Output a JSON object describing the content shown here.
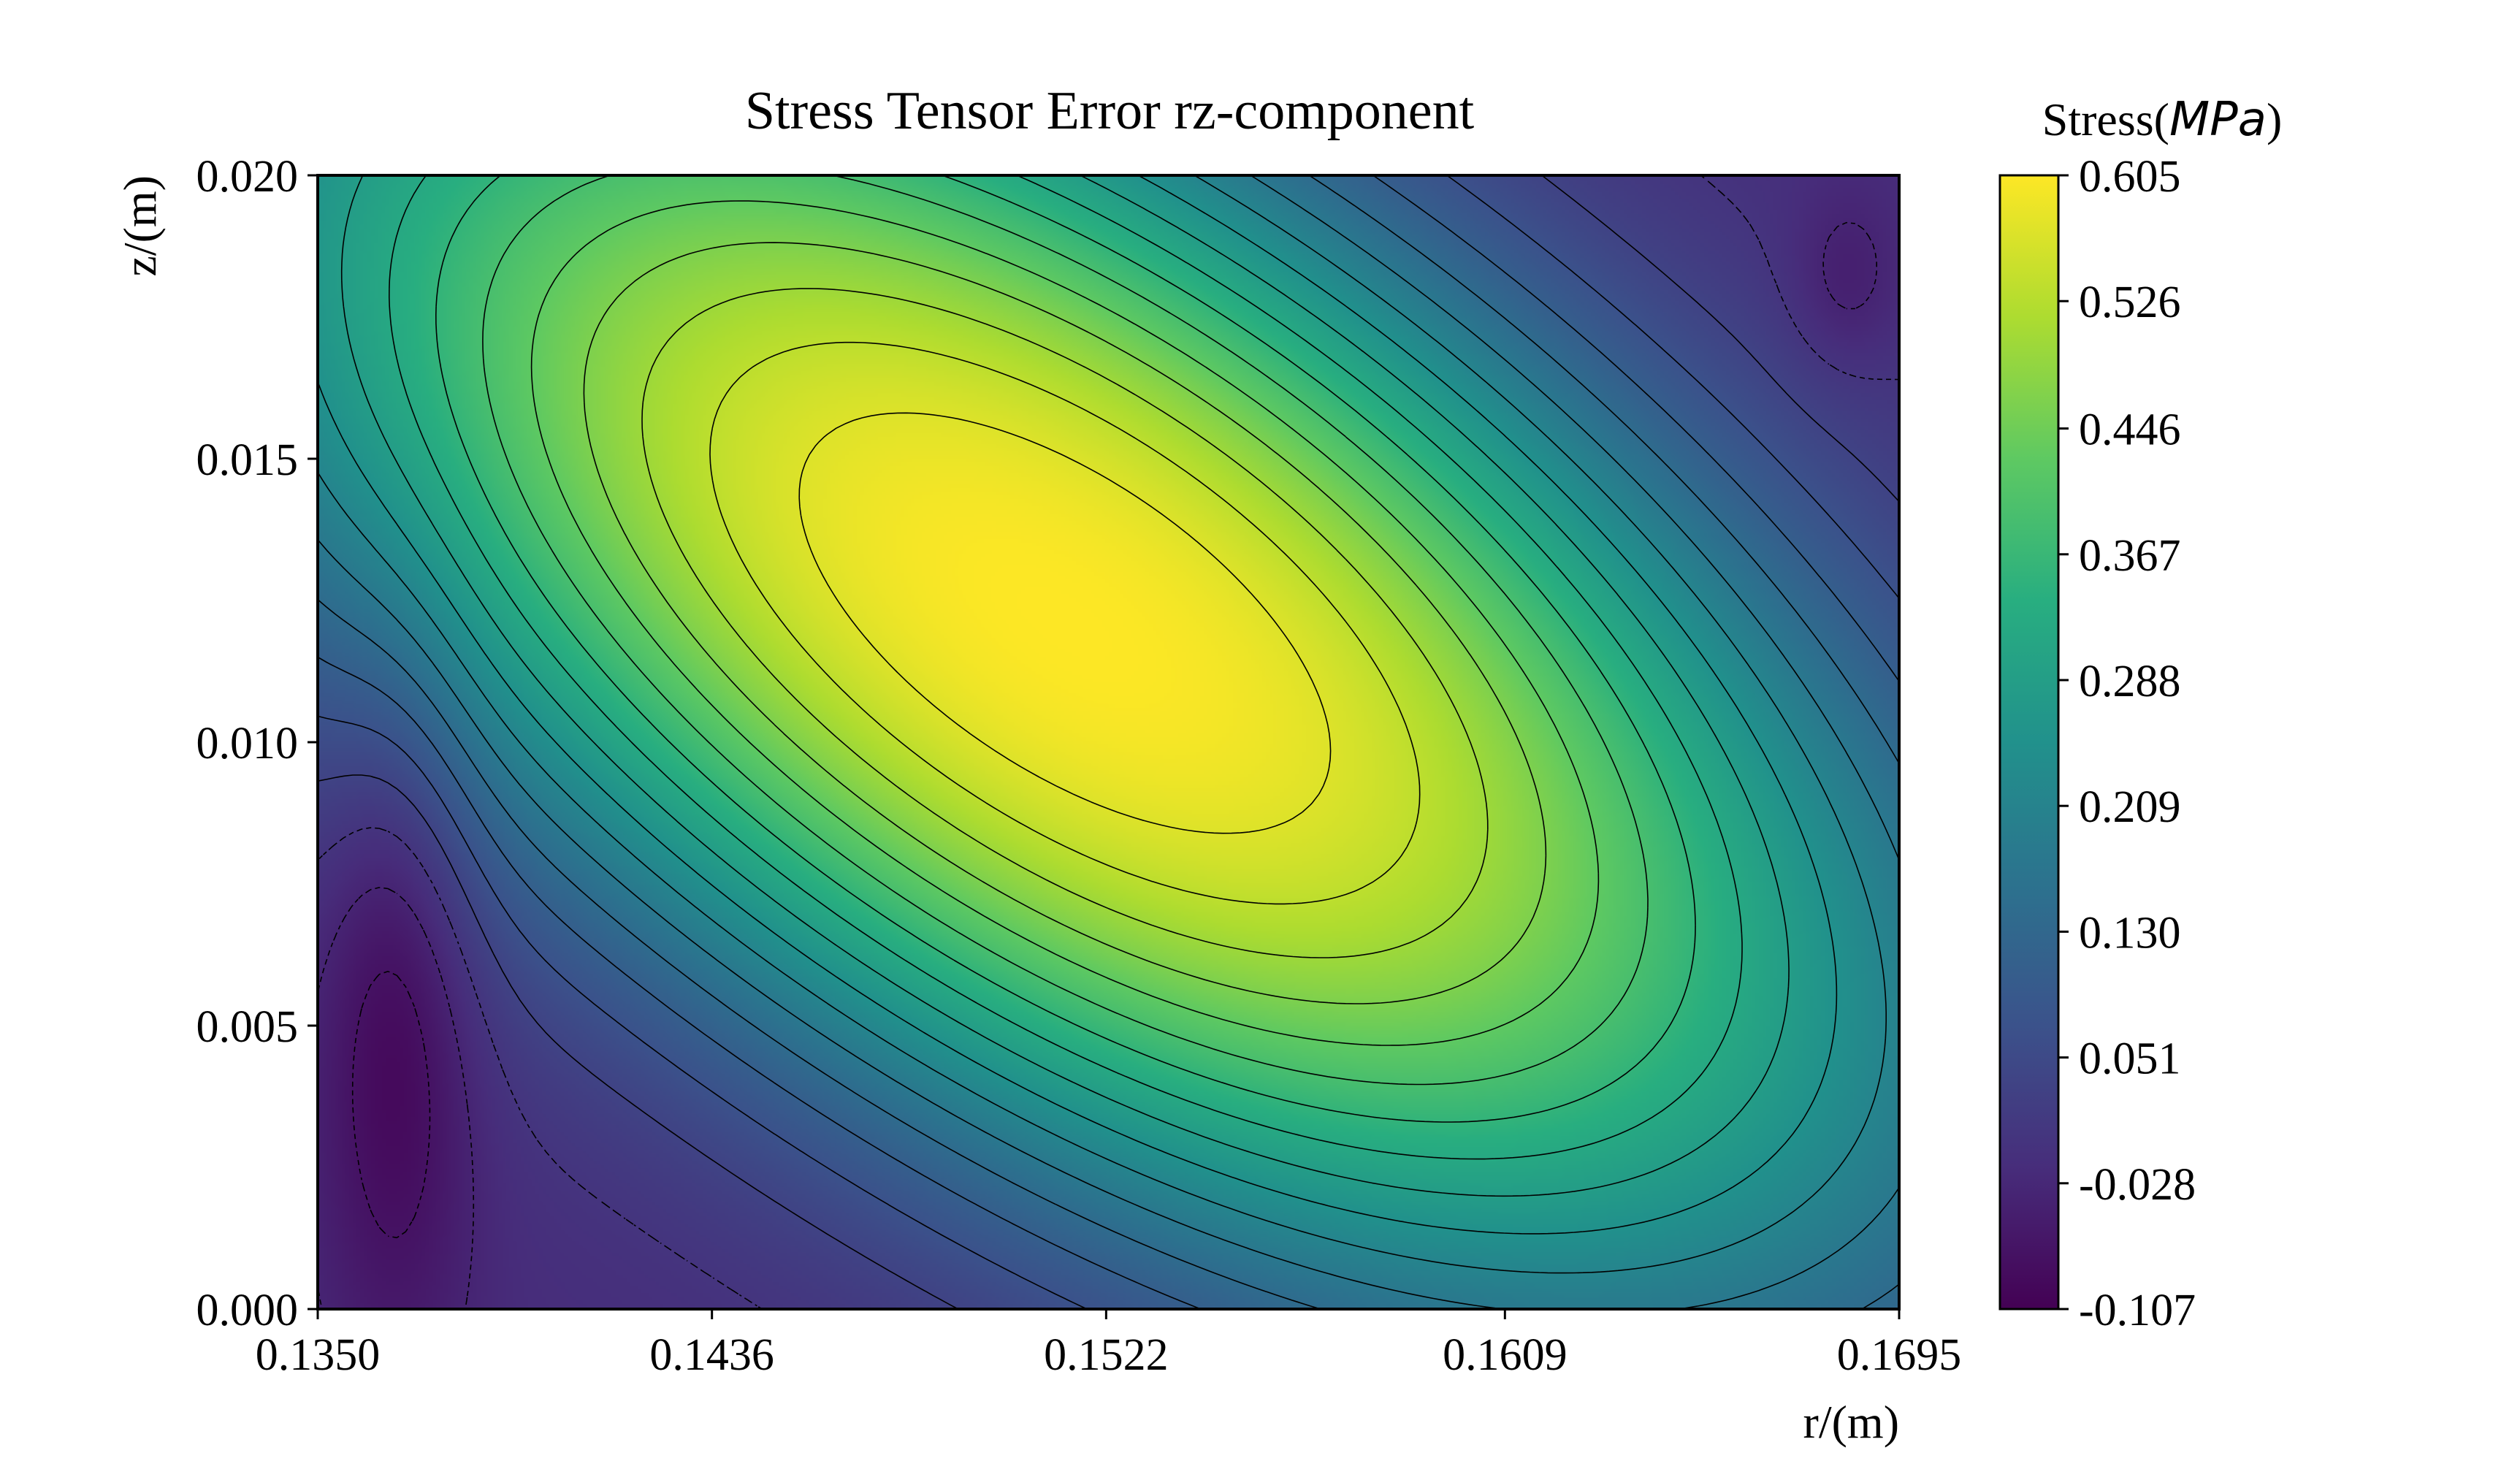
{
  "chart_data": {
    "type": "heatmap",
    "title": "Stress Tensor Error rz-component",
    "xlabel": "r/(m)",
    "ylabel": "z/(m)",
    "xlim": [
      0.135,
      0.1695
    ],
    "ylim": [
      0.0,
      0.02
    ],
    "x_ticks": [
      "0.1350",
      "0.1436",
      "0.1522",
      "0.1609",
      "0.1695"
    ],
    "y_ticks": [
      "0.000",
      "0.005",
      "0.010",
      "0.015",
      "0.020"
    ],
    "colorbar": {
      "label_text": "Stress(",
      "label_math": "MPa",
      "label_close": ")",
      "range": [
        -0.107,
        0.605
      ],
      "ticks": [
        "0.605",
        "0.526",
        "0.446",
        "0.367",
        "0.288",
        "0.209",
        "0.130",
        "0.051",
        "-0.028",
        "-0.107"
      ],
      "colormap": "viridis"
    },
    "field": {
      "max": {
        "value": 0.605,
        "r": 0.1513,
        "z": 0.0121
      },
      "mins": [
        {
          "value": -0.107,
          "r": 0.1367,
          "z": 0.0054
        },
        {
          "value": -0.06,
          "r": 0.1683,
          "z": 0.0181
        }
      ]
    },
    "contours": {
      "count": 20,
      "color": "#000000",
      "negative_style": "dashed"
    },
    "grid": false
  }
}
